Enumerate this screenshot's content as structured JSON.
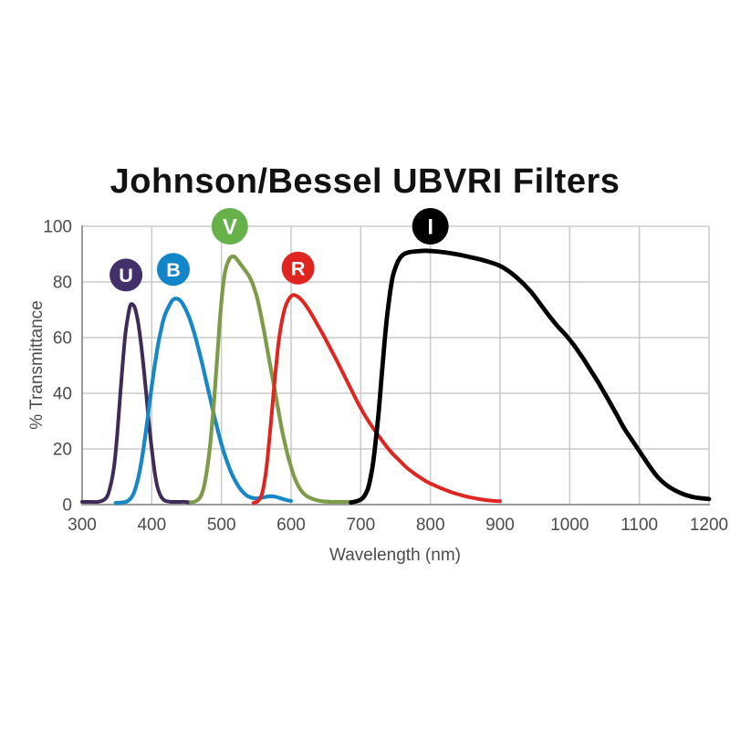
{
  "page": {
    "background": "#ffffff"
  },
  "chart_data": {
    "type": "line",
    "title": "Johnson/Bessel UBVRI Filters",
    "xlabel": "Wavelength (nm)",
    "ylabel": "% Transmittance",
    "xlim": [
      300,
      1200
    ],
    "ylim": [
      0,
      100
    ],
    "x_ticks": [
      300,
      400,
      500,
      600,
      700,
      800,
      900,
      1000,
      1100,
      1200
    ],
    "y_ticks": [
      0,
      20,
      40,
      60,
      80,
      100
    ],
    "grid": true,
    "legend_position": "badges-above-curves",
    "colors": {
      "grid": "#cacaca",
      "axis": "#9b9b9b",
      "tick_text": "#4c4c4c",
      "title_text": "#121212"
    },
    "series": [
      {
        "name": "U",
        "color": "#3e2b57",
        "width": 4.0,
        "peak_nm": 370,
        "peak_pct": 72,
        "points": [
          [
            300,
            1
          ],
          [
            312,
            1
          ],
          [
            322,
            1
          ],
          [
            330,
            1.5
          ],
          [
            336,
            3
          ],
          [
            341,
            7
          ],
          [
            346,
            14
          ],
          [
            350,
            24
          ],
          [
            354,
            37
          ],
          [
            358,
            50
          ],
          [
            362,
            61
          ],
          [
            366,
            68
          ],
          [
            369,
            71.5
          ],
          [
            372,
            72
          ],
          [
            376,
            70.5
          ],
          [
            380,
            66
          ],
          [
            384,
            59
          ],
          [
            388,
            50
          ],
          [
            392,
            40
          ],
          [
            396,
            29
          ],
          [
            400,
            20
          ],
          [
            404,
            12
          ],
          [
            408,
            6.5
          ],
          [
            412,
            3.5
          ],
          [
            416,
            2
          ],
          [
            420,
            1.3
          ],
          [
            428,
            1
          ],
          [
            438,
            1
          ],
          [
            448,
            1
          ],
          [
            455,
            0.8
          ]
        ]
      },
      {
        "name": "B",
        "color": "#1787c5",
        "width": 4.2,
        "peak_nm": 433,
        "peak_pct": 74,
        "points": [
          [
            348,
            0.6
          ],
          [
            356,
            0.7
          ],
          [
            363,
            1
          ],
          [
            368,
            1.8
          ],
          [
            373,
            3.5
          ],
          [
            378,
            7
          ],
          [
            383,
            12.5
          ],
          [
            388,
            20
          ],
          [
            393,
            29
          ],
          [
            398,
            39
          ],
          [
            403,
            48
          ],
          [
            408,
            56
          ],
          [
            413,
            62.5
          ],
          [
            418,
            67.5
          ],
          [
            424,
            71
          ],
          [
            430,
            73.5
          ],
          [
            436,
            74
          ],
          [
            442,
            73
          ],
          [
            448,
            70.5
          ],
          [
            454,
            67
          ],
          [
            460,
            62.5
          ],
          [
            466,
            57
          ],
          [
            472,
            51
          ],
          [
            478,
            44.5
          ],
          [
            484,
            38
          ],
          [
            490,
            31.5
          ],
          [
            496,
            25.5
          ],
          [
            502,
            20
          ],
          [
            508,
            15.5
          ],
          [
            514,
            11.5
          ],
          [
            520,
            8.5
          ],
          [
            526,
            6
          ],
          [
            532,
            4.2
          ],
          [
            538,
            3
          ],
          [
            546,
            2.3
          ],
          [
            554,
            2.3
          ],
          [
            562,
            2.7
          ],
          [
            570,
            3
          ],
          [
            578,
            2.8
          ],
          [
            586,
            2.2
          ],
          [
            594,
            1.6
          ],
          [
            600,
            1.3
          ]
        ]
      },
      {
        "name": "V",
        "color": "#7d9c4a",
        "width": 4.2,
        "peak_nm": 515,
        "peak_pct": 89,
        "points": [
          [
            456,
            0.8
          ],
          [
            463,
            1.2
          ],
          [
            469,
            2.5
          ],
          [
            474,
            5.5
          ],
          [
            479,
            12
          ],
          [
            484,
            22
          ],
          [
            489,
            36
          ],
          [
            494,
            53
          ],
          [
            498,
            67
          ],
          [
            502,
            78
          ],
          [
            506,
            84.5
          ],
          [
            510,
            87.5
          ],
          [
            514,
            89
          ],
          [
            519,
            89
          ],
          [
            524,
            87.5
          ],
          [
            530,
            85.5
          ],
          [
            536,
            83.5
          ],
          [
            542,
            81
          ],
          [
            548,
            77
          ],
          [
            553,
            72.5
          ],
          [
            558,
            66.5
          ],
          [
            564,
            58.5
          ],
          [
            570,
            50
          ],
          [
            576,
            42
          ],
          [
            582,
            33.5
          ],
          [
            588,
            25.5
          ],
          [
            594,
            19
          ],
          [
            600,
            13.5
          ],
          [
            606,
            9
          ],
          [
            612,
            6
          ],
          [
            618,
            4
          ],
          [
            625,
            2.7
          ],
          [
            634,
            1.8
          ],
          [
            644,
            1.2
          ],
          [
            658,
            1
          ],
          [
            672,
            1
          ],
          [
            686,
            1
          ]
        ]
      },
      {
        "name": "R",
        "color": "#e0241f",
        "width": 4.0,
        "peak_nm": 603,
        "peak_pct": 75,
        "points": [
          [
            546,
            0.6
          ],
          [
            552,
            1.2
          ],
          [
            557,
            3
          ],
          [
            561,
            7
          ],
          [
            565,
            14
          ],
          [
            569,
            24
          ],
          [
            573,
            35
          ],
          [
            577,
            46
          ],
          [
            581,
            56
          ],
          [
            585,
            63.5
          ],
          [
            589,
            68.5
          ],
          [
            593,
            72
          ],
          [
            598,
            74.3
          ],
          [
            603,
            75.3
          ],
          [
            608,
            75
          ],
          [
            614,
            73.8
          ],
          [
            620,
            72
          ],
          [
            628,
            69
          ],
          [
            636,
            65.5
          ],
          [
            645,
            61.5
          ],
          [
            655,
            56.8
          ],
          [
            665,
            52
          ],
          [
            675,
            47
          ],
          [
            685,
            42
          ],
          [
            695,
            37
          ],
          [
            705,
            32.5
          ],
          [
            715,
            28.5
          ],
          [
            725,
            25
          ],
          [
            735,
            21.5
          ],
          [
            745,
            18.5
          ],
          [
            755,
            16
          ],
          [
            765,
            13.5
          ],
          [
            775,
            11.5
          ],
          [
            785,
            9.8
          ],
          [
            795,
            8.2
          ],
          [
            805,
            7
          ],
          [
            818,
            5.6
          ],
          [
            831,
            4.4
          ],
          [
            844,
            3.4
          ],
          [
            857,
            2.6
          ],
          [
            870,
            2
          ],
          [
            883,
            1.5
          ],
          [
            900,
            1.2
          ]
        ]
      },
      {
        "name": "I",
        "color": "#000000",
        "width": 4.8,
        "peak_nm": 795,
        "peak_pct": 91,
        "points": [
          [
            686,
            0.8
          ],
          [
            694,
            1.2
          ],
          [
            700,
            1.8
          ],
          [
            705,
            3
          ],
          [
            710,
            5.5
          ],
          [
            714,
            9.5
          ],
          [
            718,
            15.5
          ],
          [
            722,
            24
          ],
          [
            726,
            34
          ],
          [
            730,
            46
          ],
          [
            734,
            58
          ],
          [
            738,
            68
          ],
          [
            742,
            76
          ],
          [
            746,
            82
          ],
          [
            751,
            86
          ],
          [
            756,
            88.5
          ],
          [
            762,
            90
          ],
          [
            770,
            90.7
          ],
          [
            780,
            91
          ],
          [
            793,
            91.2
          ],
          [
            806,
            91
          ],
          [
            818,
            90.7
          ],
          [
            830,
            90.3
          ],
          [
            843,
            89.7
          ],
          [
            856,
            89
          ],
          [
            870,
            88.2
          ],
          [
            884,
            87.2
          ],
          [
            898,
            86
          ],
          [
            910,
            84.3
          ],
          [
            922,
            82
          ],
          [
            934,
            79.2
          ],
          [
            946,
            76
          ],
          [
            958,
            72
          ],
          [
            970,
            68
          ],
          [
            982,
            64.3
          ],
          [
            994,
            61
          ],
          [
            1006,
            57.3
          ],
          [
            1018,
            53
          ],
          [
            1030,
            48.3
          ],
          [
            1042,
            43.5
          ],
          [
            1054,
            38.3
          ],
          [
            1066,
            33
          ],
          [
            1078,
            27.5
          ],
          [
            1090,
            23
          ],
          [
            1102,
            18.5
          ],
          [
            1114,
            14
          ],
          [
            1126,
            10
          ],
          [
            1138,
            7.2
          ],
          [
            1152,
            5
          ],
          [
            1166,
            3.5
          ],
          [
            1180,
            2.6
          ],
          [
            1200,
            2
          ]
        ]
      }
    ],
    "badges": [
      {
        "label": "U",
        "color": "#43306b",
        "x_nm": 363,
        "y_pct": 82.5,
        "r": 18
      },
      {
        "label": "B",
        "color": "#1386c9",
        "x_nm": 431,
        "y_pct": 84.5,
        "r": 18
      },
      {
        "label": "V",
        "color": "#66b14a",
        "x_nm": 512,
        "y_pct": 100,
        "r": 20
      },
      {
        "label": "R",
        "color": "#e0241f",
        "x_nm": 610,
        "y_pct": 85,
        "r": 18
      },
      {
        "label": "I",
        "color": "#000000",
        "x_nm": 800,
        "y_pct": 100,
        "r": 20
      }
    ]
  }
}
